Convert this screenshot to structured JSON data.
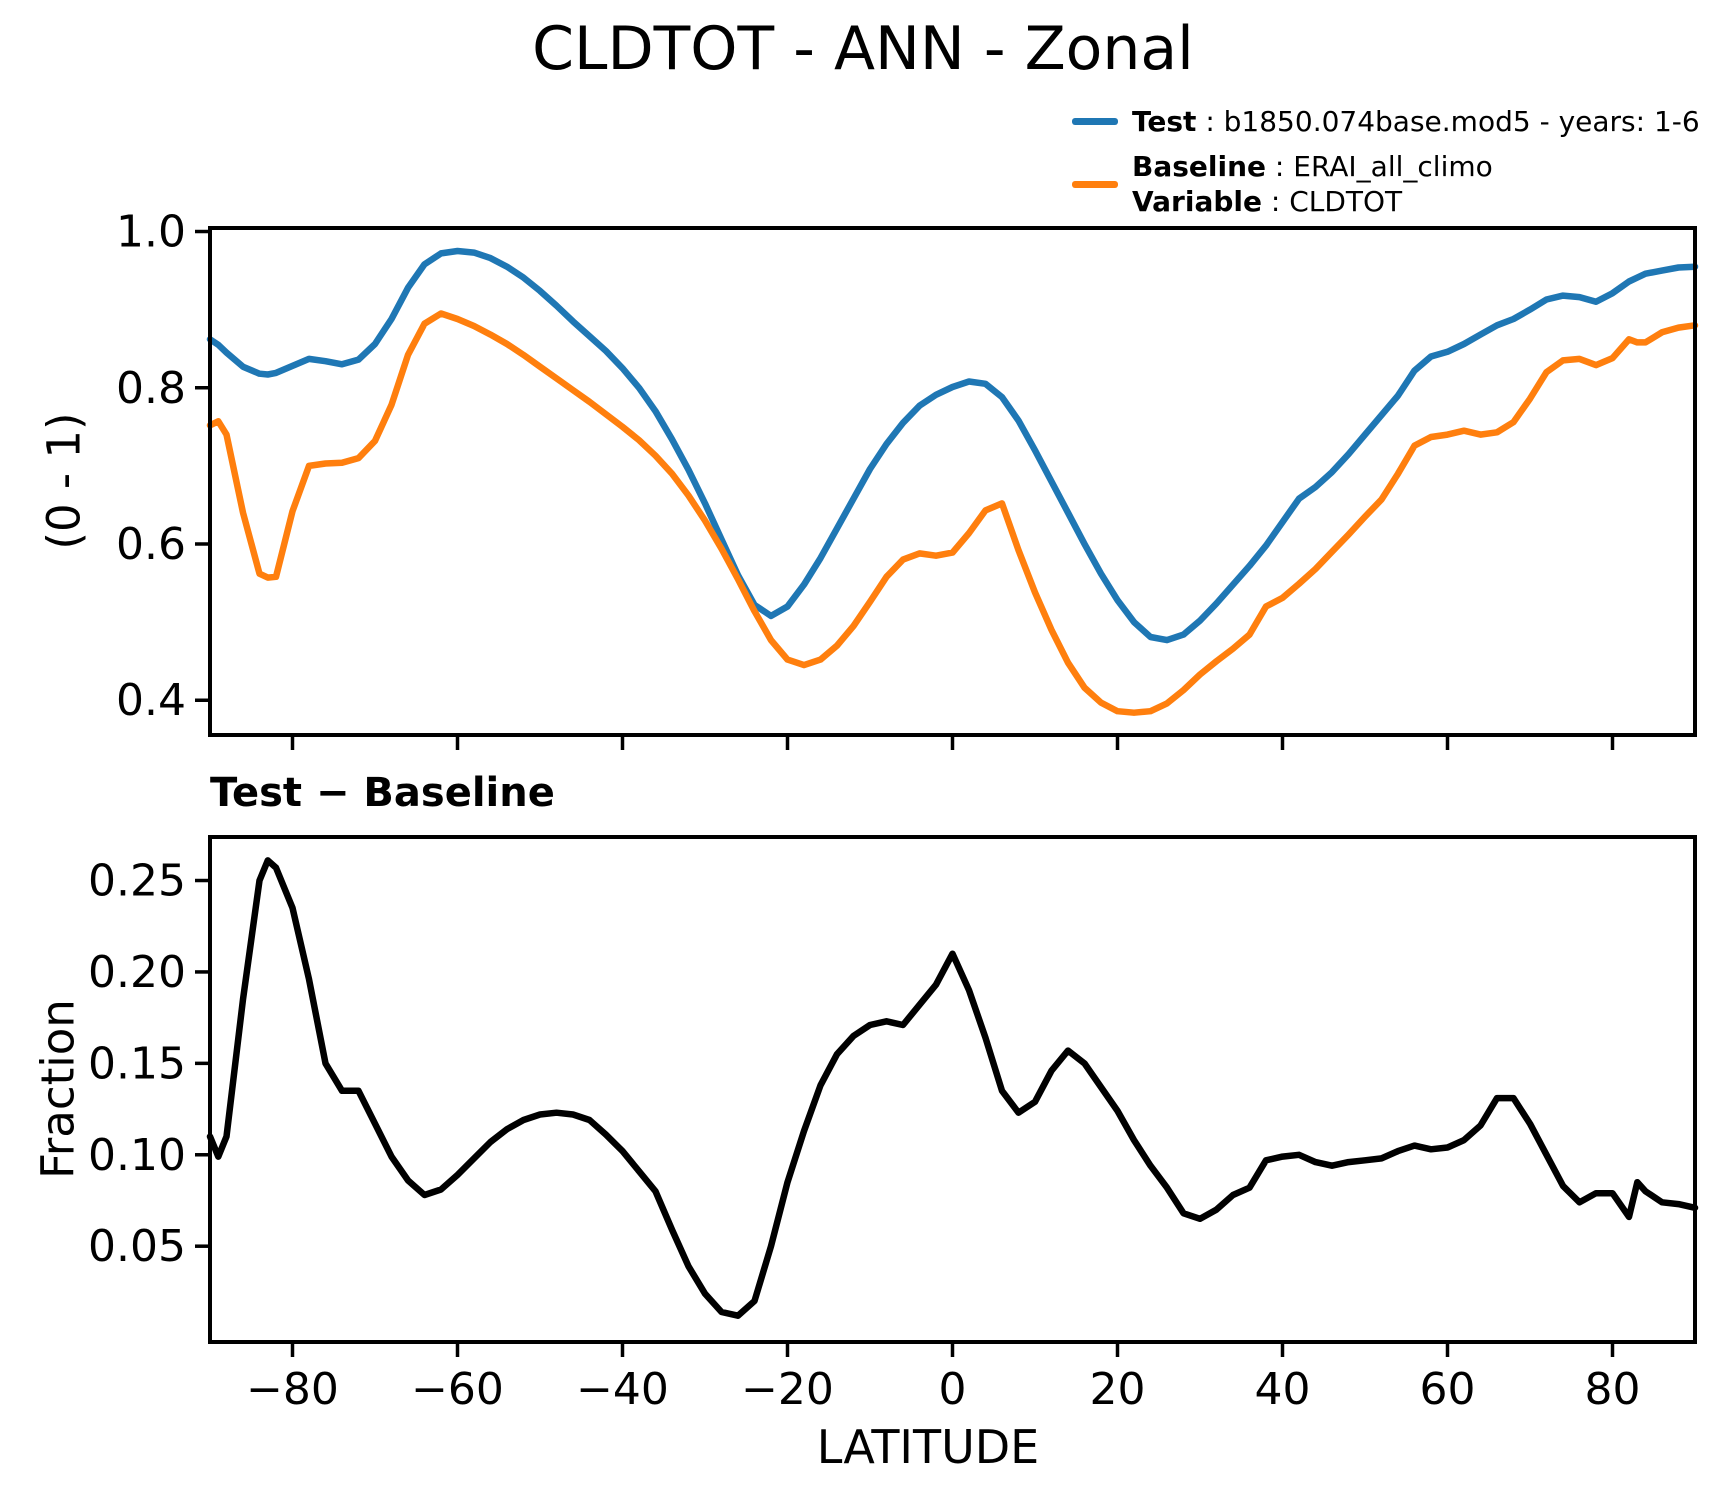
{
  "title": "CLDTOT - ANN - Zonal",
  "legend": {
    "test_bold": "Test",
    "test_rest": " : b1850.074base.mod5 - years: 1-6",
    "baseline_bold": "Baseline",
    "baseline_rest": " : ERAI_all_climo",
    "variable_bold": "Variable",
    "variable_rest": " : CLDTOT"
  },
  "colors": {
    "test": "#1f77b4",
    "baseline": "#ff7f0e",
    "diff": "#000000"
  },
  "chart_data": [
    {
      "type": "line",
      "title": "",
      "ylabel": "(0 - 1)",
      "xlabel": "",
      "legend_position": "upper right outside",
      "grid": false,
      "xlim": [
        -90,
        90
      ],
      "ylim": [
        0.3555,
        1.0045
      ],
      "yticks": [
        1.0,
        0.8,
        0.6,
        0.4
      ],
      "ytick_labels": [
        "1.0",
        "0.8",
        "0.6",
        "0.4"
      ],
      "xticks": [
        -80,
        -60,
        -40,
        -20,
        0,
        20,
        40,
        60,
        80
      ],
      "xtick_labels": [],
      "x": [
        -90,
        -89,
        -88,
        -86,
        -84,
        -83,
        -82,
        -80,
        -78,
        -76,
        -74,
        -72,
        -70,
        -68,
        -66,
        -64,
        -62,
        -60,
        -58,
        -56,
        -54,
        -52,
        -50,
        -48,
        -46,
        -44,
        -42,
        -40,
        -38,
        -36,
        -34,
        -32,
        -30,
        -28,
        -26,
        -24,
        -22,
        -20,
        -18,
        -16,
        -14,
        -12,
        -10,
        -8,
        -6,
        -4,
        -2,
        0,
        2,
        4,
        6,
        8,
        10,
        12,
        14,
        16,
        18,
        20,
        22,
        24,
        26,
        28,
        30,
        32,
        34,
        36,
        38,
        40,
        42,
        44,
        46,
        48,
        50,
        52,
        54,
        56,
        58,
        60,
        62,
        64,
        66,
        68,
        70,
        72,
        74,
        76,
        78,
        80,
        82,
        83,
        84,
        86,
        88,
        90
      ],
      "series": [
        {
          "name": "Test",
          "color": "#1f77b4",
          "values": [
            0.862,
            0.855,
            0.845,
            0.827,
            0.818,
            0.817,
            0.819,
            0.828,
            0.837,
            0.834,
            0.83,
            0.836,
            0.856,
            0.888,
            0.928,
            0.958,
            0.972,
            0.975,
            0.973,
            0.966,
            0.955,
            0.941,
            0.924,
            0.905,
            0.885,
            0.866,
            0.847,
            0.825,
            0.8,
            0.77,
            0.734,
            0.695,
            0.652,
            0.606,
            0.56,
            0.522,
            0.508,
            0.52,
            0.548,
            0.582,
            0.62,
            0.658,
            0.696,
            0.728,
            0.755,
            0.777,
            0.791,
            0.801,
            0.808,
            0.805,
            0.788,
            0.758,
            0.72,
            0.68,
            0.64,
            0.6,
            0.562,
            0.528,
            0.5,
            0.481,
            0.477,
            0.484,
            0.502,
            0.524,
            0.548,
            0.572,
            0.598,
            0.628,
            0.658,
            0.673,
            0.692,
            0.715,
            0.74,
            0.765,
            0.79,
            0.822,
            0.84,
            0.846,
            0.856,
            0.868,
            0.88,
            0.888,
            0.9,
            0.913,
            0.918,
            0.916,
            0.91,
            0.921,
            0.936,
            0.941,
            0.946,
            0.95,
            0.954,
            0.955
          ]
        },
        {
          "name": "Baseline",
          "color": "#ff7f0e",
          "values": [
            0.752,
            0.757,
            0.74,
            0.64,
            0.562,
            0.557,
            0.558,
            0.642,
            0.7,
            0.703,
            0.704,
            0.71,
            0.732,
            0.778,
            0.842,
            0.882,
            0.895,
            0.888,
            0.879,
            0.868,
            0.856,
            0.842,
            0.827,
            0.812,
            0.797,
            0.782,
            0.766,
            0.75,
            0.733,
            0.713,
            0.69,
            0.662,
            0.63,
            0.594,
            0.555,
            0.514,
            0.477,
            0.452,
            0.445,
            0.452,
            0.47,
            0.495,
            0.526,
            0.558,
            0.58,
            0.588,
            0.585,
            0.589,
            0.614,
            0.643,
            0.652,
            0.592,
            0.538,
            0.49,
            0.448,
            0.416,
            0.397,
            0.386,
            0.384,
            0.386,
            0.396,
            0.413,
            0.433,
            0.45,
            0.466,
            0.484,
            0.52,
            0.531,
            0.549,
            0.568,
            0.59,
            0.612,
            0.635,
            0.657,
            0.69,
            0.726,
            0.737,
            0.74,
            0.745,
            0.74,
            0.743,
            0.756,
            0.786,
            0.82,
            0.835,
            0.837,
            0.829,
            0.838,
            0.862,
            0.858,
            0.858,
            0.871,
            0.877,
            0.88
          ]
        }
      ]
    },
    {
      "type": "line",
      "title": "Test − Baseline",
      "ylabel": "Fraction",
      "xlabel": "LATITUDE",
      "grid": false,
      "xlim": [
        -90,
        90
      ],
      "ylim": [
        -0.0024,
        0.2738
      ],
      "yticks": [
        0.25,
        0.2,
        0.15,
        0.1,
        0.05
      ],
      "ytick_labels": [
        "0.25",
        "0.20",
        "0.15",
        "0.10",
        "0.05"
      ],
      "xticks": [
        -80,
        -60,
        -40,
        -20,
        0,
        20,
        40,
        60,
        80
      ],
      "xtick_labels": [
        "−80",
        "−60",
        "−40",
        "−20",
        "0",
        "20",
        "40",
        "60",
        "80"
      ],
      "x": [
        -90,
        -89,
        -88,
        -86,
        -84,
        -83,
        -82,
        -80,
        -78,
        -76,
        -74,
        -72,
        -70,
        -68,
        -66,
        -64,
        -62,
        -60,
        -58,
        -56,
        -54,
        -52,
        -50,
        -48,
        -46,
        -44,
        -42,
        -40,
        -38,
        -36,
        -34,
        -32,
        -30,
        -28,
        -26,
        -24,
        -22,
        -20,
        -18,
        -16,
        -14,
        -12,
        -10,
        -8,
        -6,
        -4,
        -2,
        0,
        2,
        4,
        6,
        8,
        10,
        12,
        14,
        16,
        18,
        20,
        22,
        24,
        26,
        28,
        30,
        32,
        34,
        36,
        38,
        40,
        42,
        44,
        46,
        48,
        50,
        52,
        54,
        56,
        58,
        60,
        62,
        64,
        66,
        68,
        70,
        72,
        74,
        76,
        78,
        80,
        82,
        83,
        84,
        86,
        88,
        90
      ],
      "series": [
        {
          "name": "Test − Baseline",
          "color": "#000000",
          "values": [
            0.11,
            0.099,
            0.11,
            0.185,
            0.25,
            0.261,
            0.257,
            0.235,
            0.196,
            0.15,
            0.135,
            0.135,
            0.117,
            0.099,
            0.086,
            0.078,
            0.081,
            0.089,
            0.098,
            0.107,
            0.114,
            0.119,
            0.122,
            0.123,
            0.122,
            0.119,
            0.111,
            0.102,
            0.091,
            0.08,
            0.059,
            0.039,
            0.024,
            0.014,
            0.012,
            0.02,
            0.05,
            0.085,
            0.113,
            0.138,
            0.155,
            0.165,
            0.171,
            0.173,
            0.171,
            0.182,
            0.193,
            0.21,
            0.19,
            0.164,
            0.135,
            0.123,
            0.129,
            0.146,
            0.157,
            0.15,
            0.137,
            0.124,
            0.108,
            0.094,
            0.082,
            0.068,
            0.065,
            0.07,
            0.078,
            0.082,
            0.097,
            0.099,
            0.1,
            0.096,
            0.094,
            0.096,
            0.097,
            0.098,
            0.102,
            0.105,
            0.103,
            0.104,
            0.108,
            0.116,
            0.131,
            0.131,
            0.117,
            0.1,
            0.083,
            0.074,
            0.079,
            0.079,
            0.066,
            0.085,
            0.08,
            0.074,
            0.073,
            0.071
          ]
        }
      ]
    }
  ]
}
